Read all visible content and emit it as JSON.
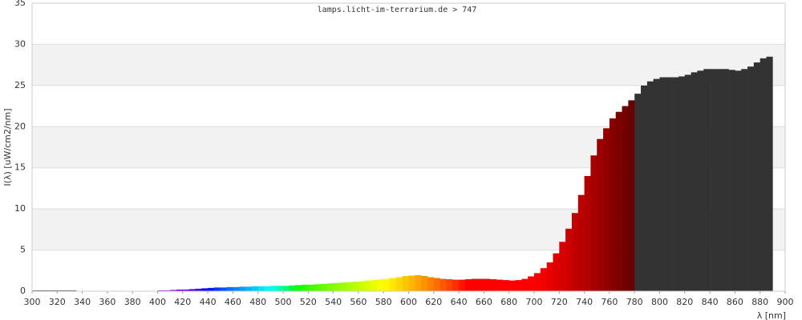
{
  "chart_data": {
    "type": "spectrum",
    "title": "lamps.licht-im-terrarium.de > 747",
    "x_label": "λ [nm]",
    "y_label": "I(λ) [uW/cm2/nm]",
    "x": [
      300,
      305,
      310,
      315,
      320,
      325,
      330,
      335,
      340,
      345,
      350,
      355,
      360,
      365,
      370,
      375,
      380,
      385,
      390,
      395,
      400,
      405,
      410,
      415,
      420,
      425,
      430,
      435,
      440,
      445,
      450,
      455,
      460,
      465,
      470,
      475,
      480,
      485,
      490,
      495,
      500,
      505,
      510,
      515,
      520,
      525,
      530,
      535,
      540,
      545,
      550,
      555,
      560,
      565,
      570,
      575,
      580,
      585,
      590,
      595,
      600,
      605,
      610,
      615,
      620,
      625,
      630,
      635,
      640,
      645,
      650,
      655,
      660,
      665,
      670,
      675,
      680,
      685,
      690,
      695,
      700,
      705,
      710,
      715,
      720,
      725,
      730,
      735,
      740,
      745,
      750,
      755,
      760,
      765,
      770,
      775,
      780,
      785,
      790,
      795,
      800,
      805,
      810,
      815,
      820,
      825,
      830,
      835,
      840,
      845,
      850,
      855,
      860,
      865,
      870,
      875,
      880,
      885
    ],
    "values": [
      0.1,
      0.1,
      0.1,
      0.1,
      0.1,
      0.1,
      0.1,
      0,
      0,
      0,
      0,
      0,
      0,
      0,
      0,
      0,
      0,
      0,
      0,
      0,
      0.1,
      0.1,
      0.15,
      0.2,
      0.2,
      0.25,
      0.3,
      0.35,
      0.4,
      0.45,
      0.45,
      0.5,
      0.5,
      0.55,
      0.55,
      0.6,
      0.6,
      0.6,
      0.65,
      0.65,
      0.65,
      0.7,
      0.75,
      0.8,
      0.8,
      0.85,
      0.9,
      0.95,
      1.0,
      1.05,
      1.1,
      1.15,
      1.2,
      1.3,
      1.35,
      1.45,
      1.5,
      1.6,
      1.7,
      1.85,
      1.9,
      1.95,
      1.85,
      1.7,
      1.6,
      1.5,
      1.45,
      1.4,
      1.4,
      1.45,
      1.5,
      1.5,
      1.5,
      1.45,
      1.4,
      1.35,
      1.3,
      1.35,
      1.5,
      1.8,
      2.2,
      2.8,
      3.5,
      4.6,
      6.0,
      7.6,
      9.5,
      11.7,
      14,
      16.5,
      18.5,
      19.8,
      21,
      21.8,
      22.5,
      23.2,
      24,
      25,
      25.5,
      25.8,
      26,
      26,
      26,
      26.1,
      26.3,
      26.6,
      26.8,
      27,
      27,
      27,
      27,
      26.9,
      26.8,
      27,
      27.3,
      27.8,
      28.3,
      28.5
    ],
    "invisible_color": "#333333",
    "band_color": "#f2f2f2",
    "xlim": [
      300,
      900
    ],
    "xticks": [
      300,
      320,
      340,
      360,
      380,
      400,
      420,
      440,
      460,
      480,
      500,
      520,
      540,
      560,
      580,
      600,
      620,
      640,
      660,
      680,
      700,
      720,
      740,
      760,
      780,
      800,
      820,
      840,
      860,
      880,
      900
    ],
    "ylim": [
      0,
      35
    ],
    "yticks": [
      0,
      5,
      10,
      15,
      20,
      25,
      30,
      35
    ],
    "grid": true
  }
}
